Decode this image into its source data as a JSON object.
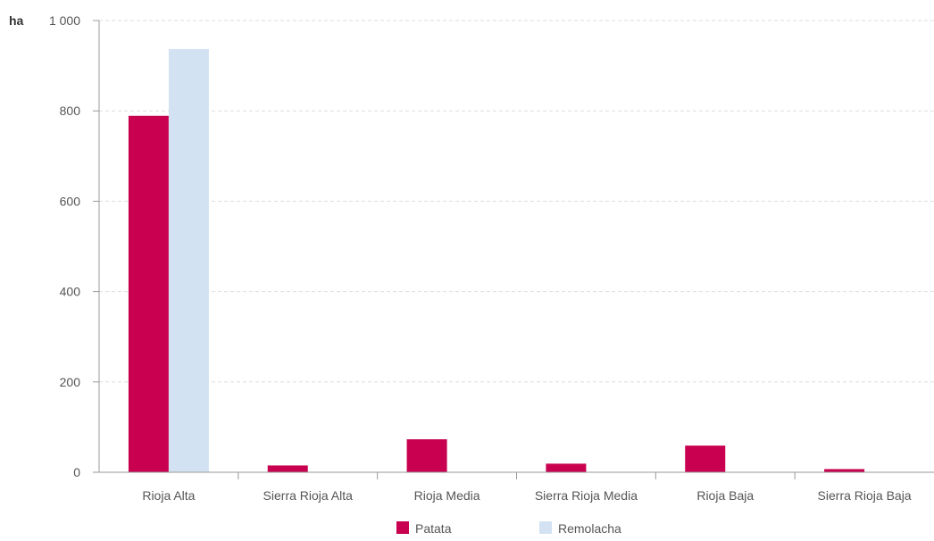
{
  "chart_data": {
    "type": "bar",
    "title": "",
    "y_unit": "ha",
    "xlabel": "",
    "ylabel": "",
    "ylim": [
      0,
      1000
    ],
    "yticks": [
      {
        "value": 0,
        "label": "0"
      },
      {
        "value": 200,
        "label": "200"
      },
      {
        "value": 400,
        "label": "400"
      },
      {
        "value": 600,
        "label": "600"
      },
      {
        "value": 800,
        "label": "800"
      },
      {
        "value": 1000,
        "label": "1 000"
      }
    ],
    "categories": [
      "Rioja Alta",
      "Sierra Rioja Alta",
      "Rioja Media",
      "Sierra Rioja Media",
      "Rioja Baja",
      "Sierra Rioja Baja"
    ],
    "series": [
      {
        "name": "Patata",
        "color": "#c8004f",
        "values": [
          789,
          15,
          73,
          19,
          59,
          7
        ]
      },
      {
        "name": "Remolacha",
        "color": "#d3e2f2",
        "values": [
          937,
          0,
          0,
          0,
          0,
          0
        ]
      }
    ],
    "grid": true,
    "legend_position": "bottom-center"
  }
}
